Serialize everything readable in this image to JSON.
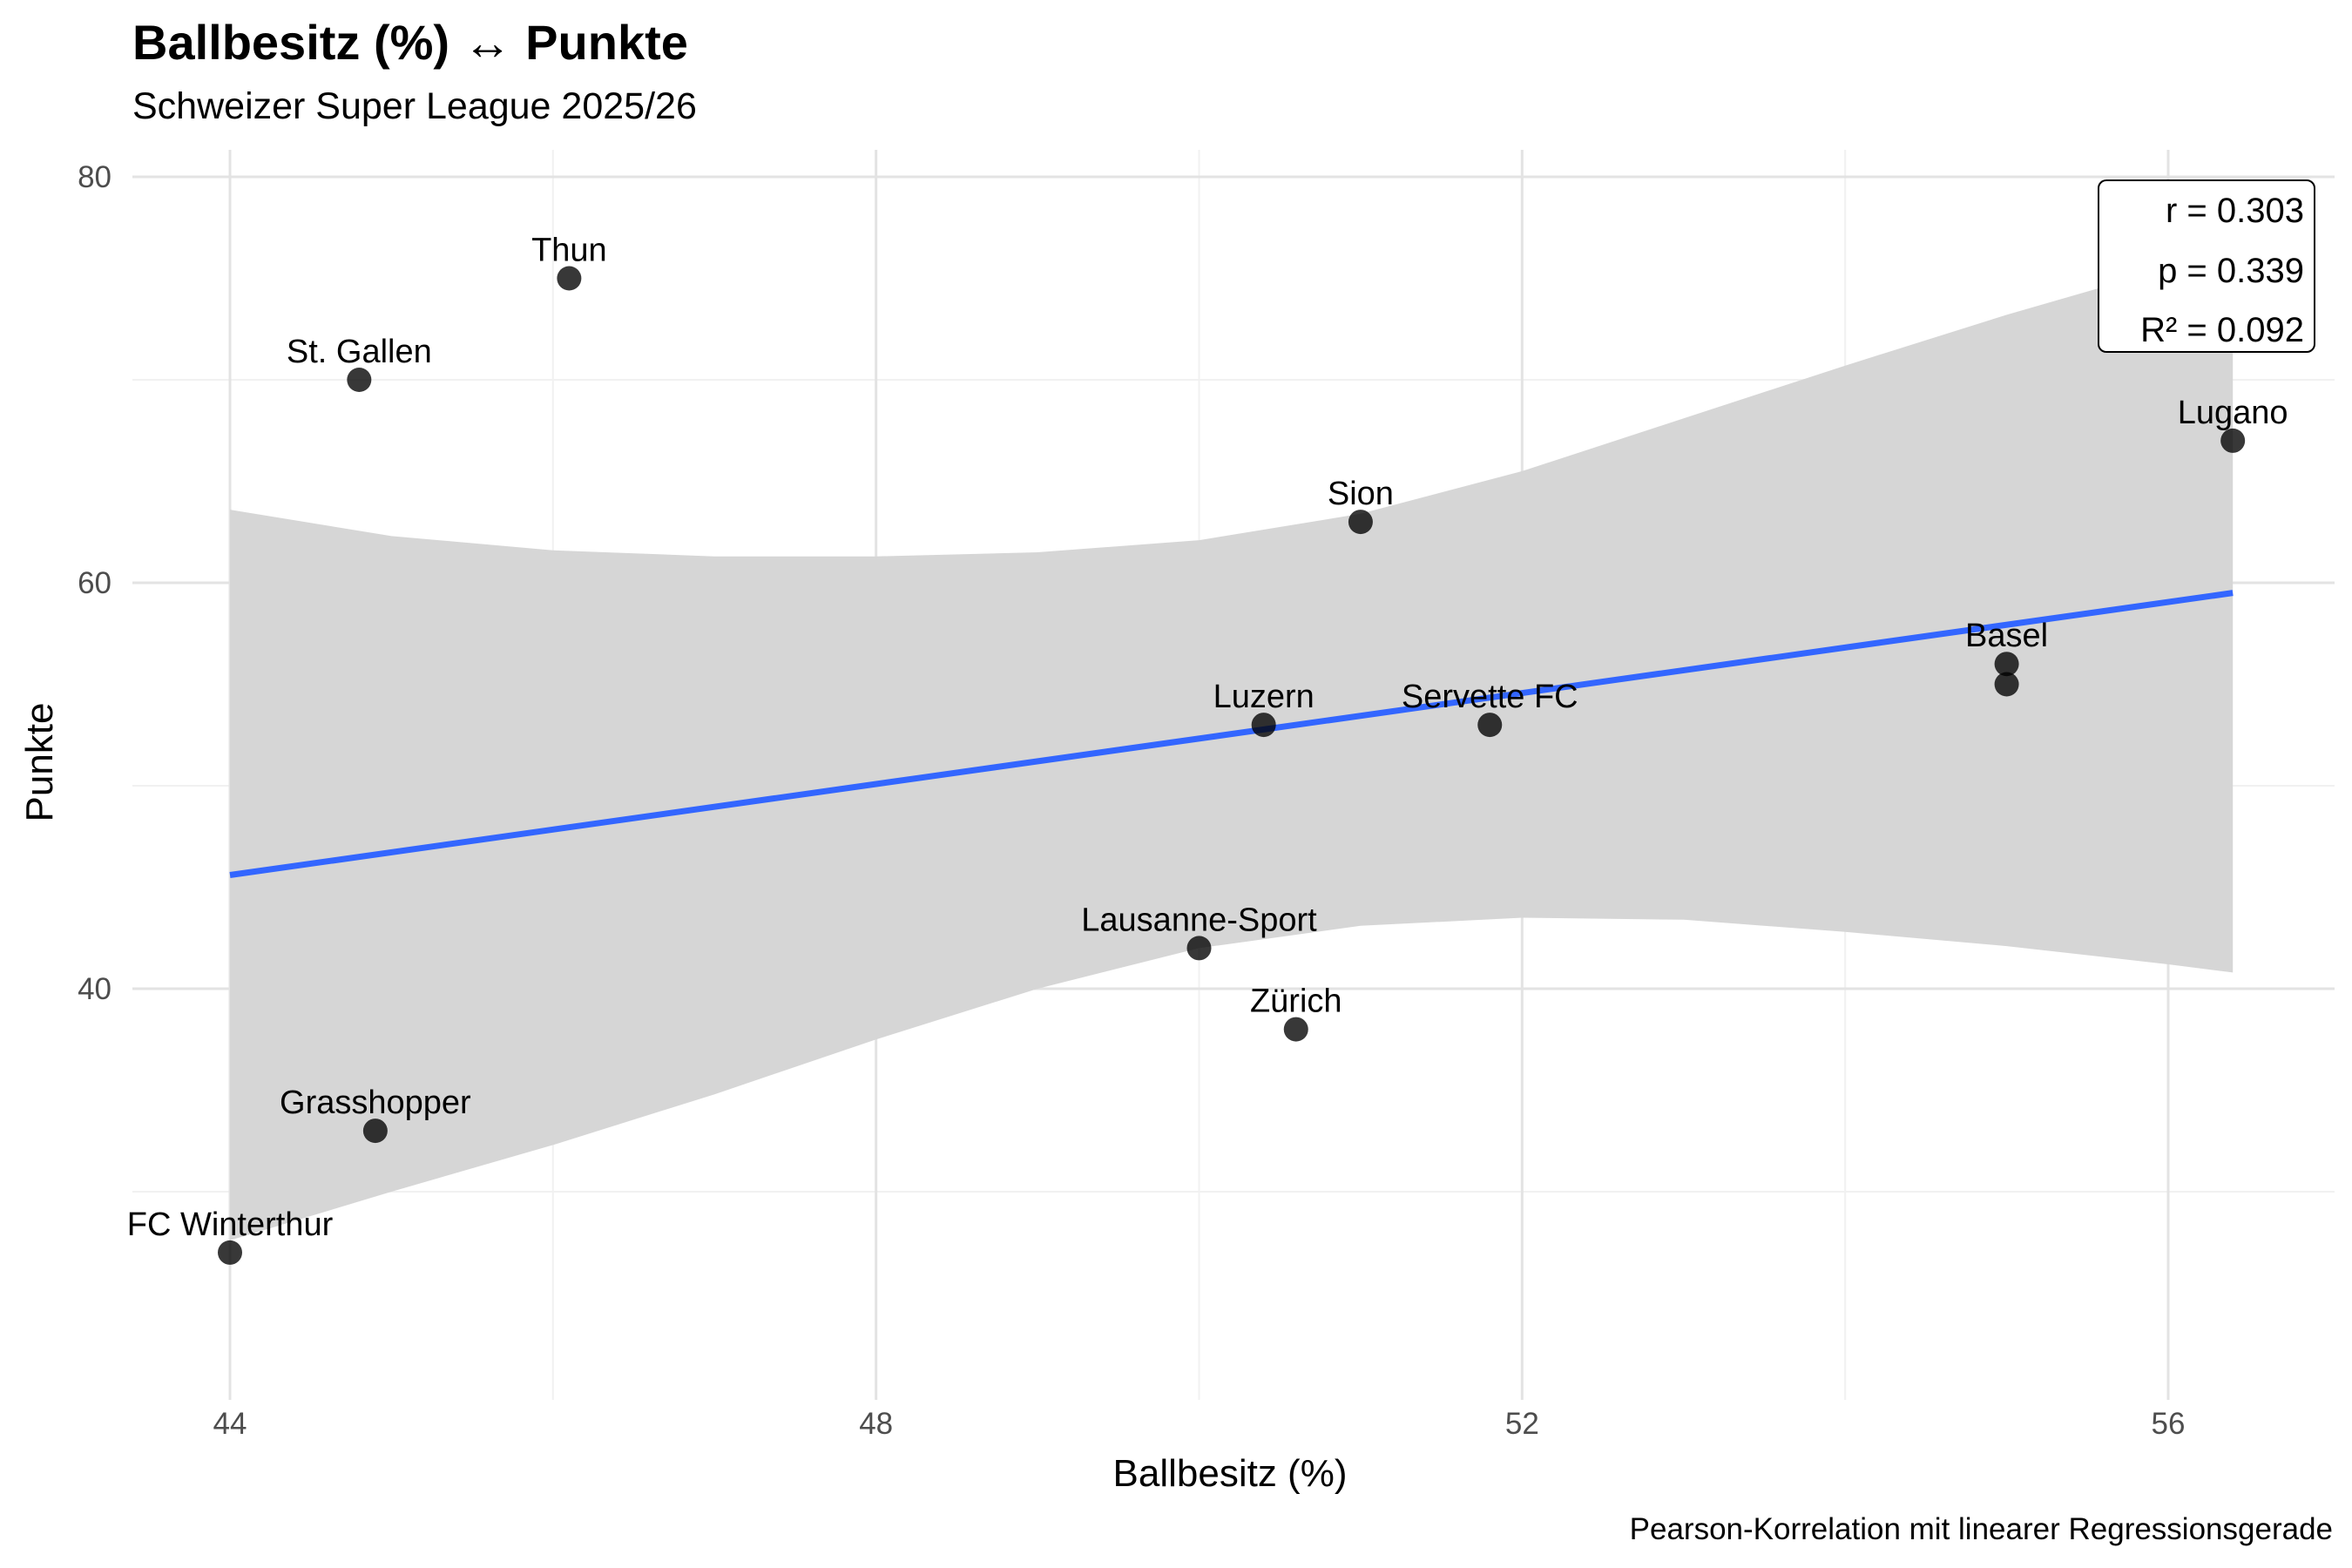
{
  "chart_data": {
    "type": "scatter",
    "title": "Ballbesitz (%) ↔ Punkte",
    "subtitle": "Schweizer Super League 2025/26",
    "caption": "Pearson-Korrelation mit linearer Regressionsgerade",
    "xlabel": "Ballbesitz (%)",
    "ylabel": "Punkte",
    "xlim": [
      43.4,
      56.8
    ],
    "ylim": [
      24.5,
      81
    ],
    "xticks": [
      44,
      48,
      52,
      56
    ],
    "yticks": [
      40,
      60,
      80
    ],
    "grid": true,
    "points": [
      {
        "team": "FC Winterthur",
        "x": 44.0,
        "y": 27
      },
      {
        "team": "St. Gallen",
        "x": 44.8,
        "y": 70
      },
      {
        "team": "Grasshopper",
        "x": 44.9,
        "y": 33
      },
      {
        "team": "Thun",
        "x": 46.1,
        "y": 75
      },
      {
        "team": "Lausanne-Sport",
        "x": 50.0,
        "y": 42
      },
      {
        "team": "Luzern",
        "x": 50.4,
        "y": 53
      },
      {
        "team": "Zürich",
        "x": 50.6,
        "y": 38
      },
      {
        "team": "Sion",
        "x": 51.0,
        "y": 63
      },
      {
        "team": "Servette FC",
        "x": 51.8,
        "y": 53
      },
      {
        "team": "Basel",
        "x": 55.0,
        "y": 56
      },
      {
        "team": "",
        "x": 55.0,
        "y": 55
      },
      {
        "team": "Lugano",
        "x": 56.4,
        "y": 67
      }
    ],
    "regression_line": {
      "x": [
        44.0,
        56.4
      ],
      "y": [
        45.6,
        59.5
      ],
      "color": "#3366ff"
    },
    "confidence_band": {
      "x": [
        44.0,
        45.0,
        46.0,
        47.0,
        48.0,
        49.0,
        50.0,
        51.0,
        52.0,
        53.0,
        54.0,
        55.0,
        56.0,
        56.4
      ],
      "upper": [
        63.6,
        62.3,
        61.6,
        61.3,
        61.3,
        61.5,
        62.1,
        63.4,
        65.5,
        68.1,
        70.7,
        73.2,
        75.5,
        76.4
      ],
      "lower": [
        27.6,
        30.0,
        32.3,
        34.8,
        37.5,
        40.0,
        42.0,
        43.1,
        43.5,
        43.4,
        42.8,
        42.1,
        41.2,
        40.8
      ],
      "color": "#d6d6d6"
    },
    "stats": [
      "r = 0.303",
      "p = 0.339",
      "R² = 0.092"
    ]
  }
}
